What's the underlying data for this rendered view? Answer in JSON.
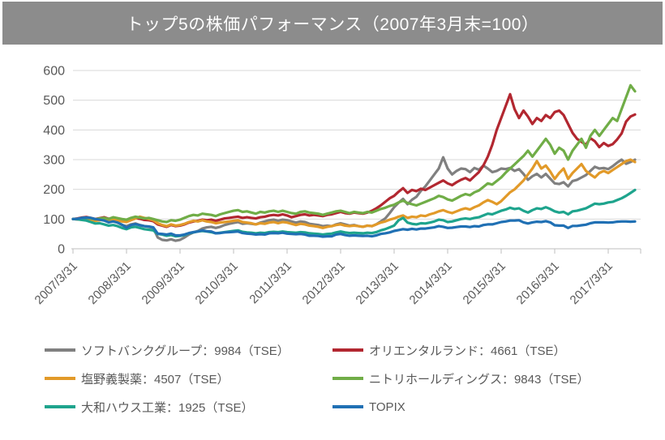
{
  "title": "トップ5の株価パフォーマンス（2007年3月末=100）",
  "colors": {
    "title_bg": "#8C8C8C",
    "title_text": "#ffffff",
    "gridline": "#D9D9D9",
    "axis": "#BFBFBF",
    "tick_label": "#595959",
    "legend_text": "#595959",
    "background": "#ffffff"
  },
  "chart_data": {
    "type": "line",
    "title": "トップ5の株価パフォーマンス（2007年3月末=100）",
    "x_unit": "months from 2007/3/31",
    "x_tick_interval_months": 12,
    "x_tick_labels": [
      "2007/3/31",
      "2008/3/31",
      "2009/3/31",
      "2010/3/31",
      "2011/3/31",
      "2012/3/31",
      "2013/3/31",
      "2014/3/31",
      "2015/3/31",
      "2016/3/31",
      "2017/3/31"
    ],
    "y_ticks": [
      0,
      100,
      200,
      300,
      400,
      500,
      600
    ],
    "ylim": [
      0,
      600
    ],
    "grid": true,
    "legend_position": "bottom",
    "series": [
      {
        "name": "ソフトバンクグループ：9984（TSE）",
        "color": "#808080",
        "values": [
          100,
          99,
          103,
          106,
          102,
          96,
          99,
          97,
          90,
          94,
          88,
          80,
          76,
          82,
          85,
          80,
          76,
          74,
          70,
          38,
          30,
          28,
          32,
          27,
          30,
          38,
          48,
          55,
          60,
          68,
          72,
          74,
          70,
          74,
          80,
          84,
          87,
          90,
          84,
          86,
          84,
          82,
          88,
          92,
          96,
          98,
          94,
          98,
          96,
          92,
          88,
          92,
          90,
          84,
          82,
          80,
          76,
          78,
          76,
          82,
          86,
          82,
          78,
          80,
          76,
          74,
          78,
          76,
          82,
          92,
          102,
          120,
          140,
          155,
          168,
          150,
          165,
          175,
          195,
          210,
          230,
          250,
          270,
          308,
          270,
          250,
          262,
          270,
          268,
          258,
          272,
          266,
          280,
          270,
          258,
          262,
          270,
          268,
          272,
          262,
          268,
          252,
          232,
          244,
          252,
          240,
          252,
          236,
          220,
          218,
          224,
          210,
          228,
          232,
          240,
          248,
          262,
          276,
          270,
          272,
          268,
          278,
          290,
          300,
          286,
          292,
          300
        ]
      },
      {
        "name": "オリエンタルランド：4661（TSE）",
        "color": "#B22730",
        "values": [
          100,
          102,
          105,
          107,
          104,
          100,
          103,
          106,
          101,
          105,
          101,
          97,
          95,
          99,
          103,
          101,
          97,
          96,
          93,
          82,
          78,
          74,
          80,
          76,
          78,
          82,
          88,
          92,
          94,
          98,
          96,
          98,
          94,
          98,
          102,
          104,
          106,
          108,
          104,
          106,
          104,
          102,
          106,
          108,
          112,
          114,
          112,
          116,
          112,
          106,
          110,
          114,
          116,
          112,
          114,
          112,
          110,
          114,
          116,
          120,
          124,
          120,
          118,
          122,
          120,
          118,
          122,
          128,
          136,
          146,
          158,
          170,
          178,
          192,
          204,
          188,
          198,
          194,
          202,
          198,
          206,
          214,
          222,
          230,
          220,
          214,
          224,
          232,
          238,
          230,
          244,
          258,
          280,
          310,
          350,
          400,
          440,
          480,
          520,
          470,
          440,
          465,
          445,
          420,
          440,
          430,
          450,
          440,
          460,
          465,
          450,
          420,
          390,
          370,
          360,
          350,
          372,
          362,
          342,
          356,
          346,
          352,
          368,
          388,
          428,
          445,
          452
        ]
      },
      {
        "name": "塩野義製薬：4507（TSE）",
        "color": "#E29A29",
        "values": [
          100,
          99,
          98,
          100,
          97,
          94,
          96,
          98,
          94,
          98,
          96,
          92,
          90,
          96,
          102,
          108,
          104,
          100,
          96,
          86,
          80,
          76,
          82,
          78,
          80,
          84,
          90,
          94,
          92,
          96,
          92,
          90,
          86,
          88,
          90,
          92,
          94,
          96,
          90,
          88,
          86,
          82,
          86,
          84,
          88,
          90,
          86,
          90,
          88,
          84,
          80,
          84,
          82,
          78,
          76,
          74,
          70,
          74,
          76,
          80,
          82,
          78,
          76,
          78,
          76,
          74,
          78,
          76,
          82,
          88,
          92,
          98,
          102,
          108,
          112,
          104,
          108,
          106,
          112,
          110,
          116,
          120,
          126,
          130,
          124,
          120,
          126,
          132,
          136,
          132,
          140,
          146,
          156,
          164,
          158,
          150,
          160,
          175,
          190,
          200,
          215,
          230,
          250,
          270,
          295,
          270,
          280,
          260,
          235,
          255,
          270,
          235,
          255,
          270,
          285,
          262,
          250,
          240,
          255,
          262,
          255,
          265,
          275,
          285,
          295,
          300,
          292
        ]
      },
      {
        "name": "ニトリホールディングス：9843（TSE）",
        "color": "#70AD47",
        "values": [
          100,
          101,
          103,
          104,
          102,
          99,
          102,
          104,
          100,
          106,
          103,
          100,
          98,
          104,
          108,
          105,
          102,
          104,
          100,
          96,
          92,
          90,
          96,
          94,
          98,
          104,
          110,
          114,
          112,
          118,
          116,
          114,
          110,
          116,
          120,
          124,
          128,
          130,
          124,
          126,
          122,
          118,
          124,
          122,
          126,
          128,
          124,
          128,
          124,
          120,
          118,
          124,
          126,
          122,
          120,
          118,
          114,
          118,
          122,
          126,
          128,
          124,
          120,
          124,
          122,
          120,
          124,
          122,
          128,
          134,
          138,
          144,
          148,
          156,
          162,
          154,
          150,
          146,
          152,
          158,
          164,
          170,
          178,
          174,
          166,
          162,
          170,
          178,
          184,
          180,
          190,
          196,
          208,
          220,
          216,
          228,
          240,
          256,
          270,
          284,
          298,
          312,
          330,
          310,
          330,
          350,
          370,
          350,
          320,
          340,
          330,
          300,
          330,
          350,
          370,
          340,
          380,
          400,
          380,
          400,
          420,
          440,
          430,
          470,
          510,
          550,
          530
        ]
      },
      {
        "name": "大和ハウス工業：1925（TSE）",
        "color": "#1EA48D",
        "values": [
          100,
          99,
          97,
          95,
          90,
          85,
          86,
          82,
          78,
          80,
          76,
          70,
          66,
          72,
          74,
          70,
          66,
          64,
          62,
          50,
          48,
          44,
          46,
          42,
          43,
          46,
          52,
          55,
          58,
          60,
          58,
          56,
          52,
          54,
          56,
          58,
          60,
          62,
          57,
          55,
          54,
          52,
          54,
          53,
          56,
          57,
          56,
          58,
          56,
          55,
          54,
          56,
          55,
          52,
          51,
          50,
          48,
          50,
          51,
          55,
          58,
          55,
          53,
          54,
          53,
          52,
          54,
          53,
          56,
          62,
          66,
          72,
          78,
          96,
          104,
          88,
          84,
          82,
          86,
          85,
          88,
          92,
          98,
          96,
          90,
          92,
          96,
          100,
          102,
          100,
          104,
          106,
          112,
          118,
          116,
          122,
          128,
          132,
          138,
          134,
          136,
          128,
          122,
          130,
          136,
          134,
          140,
          134,
          126,
          122,
          124,
          116,
          126,
          128,
          132,
          136,
          144,
          152,
          150,
          152,
          156,
          158,
          164,
          170,
          178,
          188,
          198
        ]
      },
      {
        "name": "TOPIX",
        "color": "#2070B4",
        "values": [
          100,
          101,
          104,
          105,
          104,
          100,
          98,
          95,
          89,
          92,
          88,
          81,
          71,
          80,
          83,
          79,
          76,
          75,
          72,
          51,
          50,
          48,
          51,
          45,
          45,
          48,
          53,
          56,
          58,
          62,
          59,
          58,
          52,
          53,
          55,
          56,
          57,
          58,
          53,
          51,
          50,
          48,
          49,
          48,
          52,
          53,
          52,
          54,
          51,
          50,
          49,
          50,
          48,
          44,
          44,
          43,
          41,
          42,
          42,
          48,
          50,
          46,
          44,
          45,
          44,
          43,
          44,
          42,
          45,
          50,
          52,
          55,
          60,
          63,
          66,
          64,
          67,
          65,
          68,
          68,
          70,
          72,
          76,
          74,
          70,
          71,
          73,
          75,
          75,
          73,
          76,
          75,
          80,
          82,
          82,
          86,
          90,
          92,
          95,
          95,
          96,
          89,
          85,
          89,
          91,
          90,
          93,
          89,
          79,
          78,
          78,
          70,
          77,
          77,
          79,
          81,
          86,
          89,
          89,
          89,
          88,
          89,
          91,
          92,
          92,
          91,
          92
        ]
      }
    ]
  }
}
